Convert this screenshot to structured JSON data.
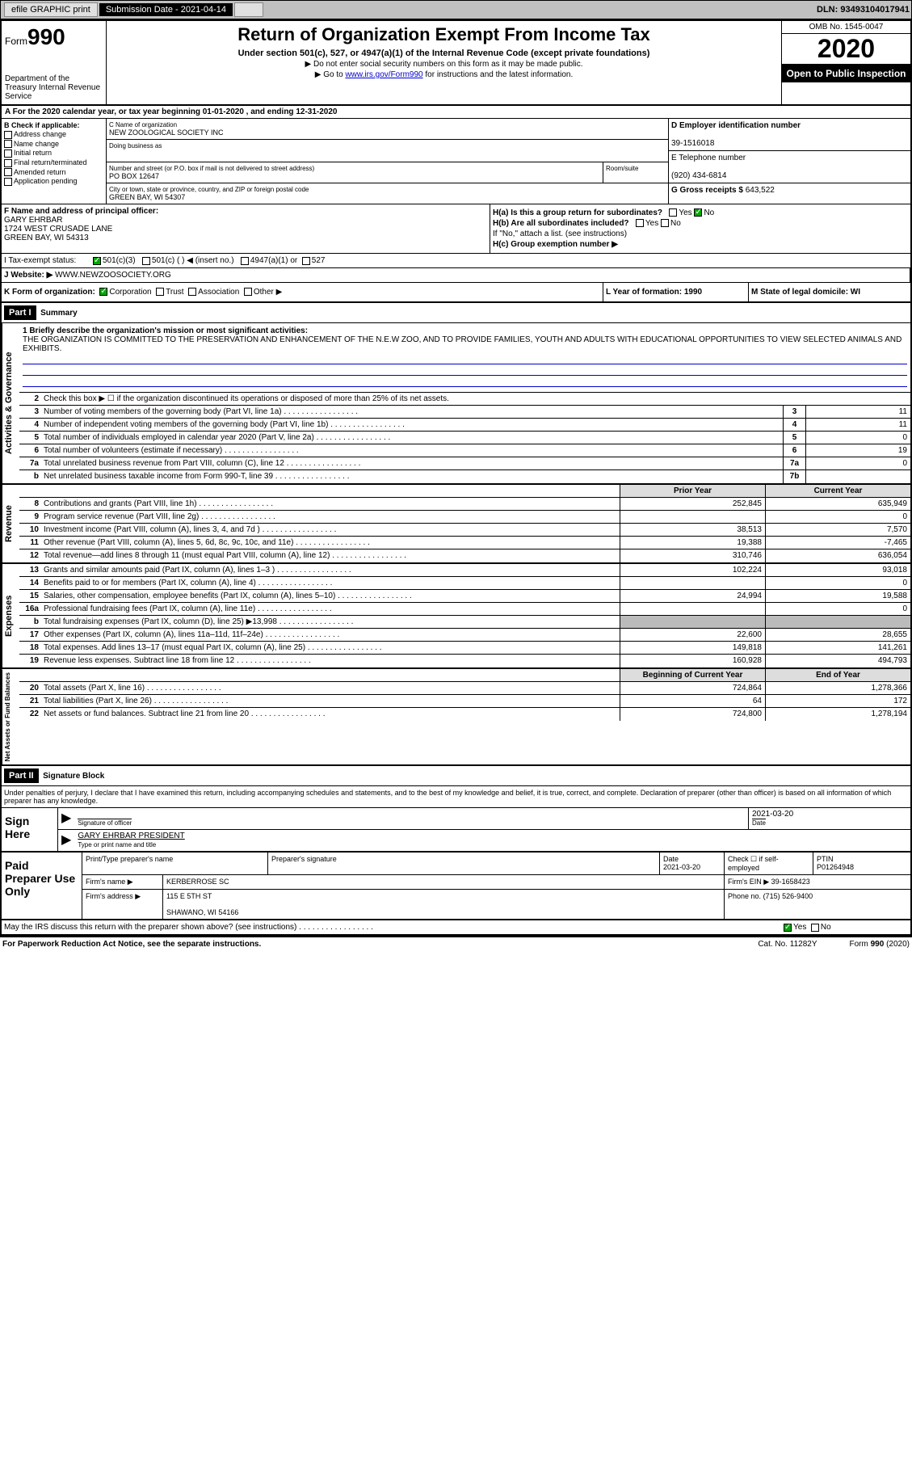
{
  "topbar": {
    "efile": "efile GRAPHIC print",
    "subdate_lbl": "Submission Date - 2021-04-14",
    "dln": "DLN: 93493104017941"
  },
  "header": {
    "form_prefix": "Form",
    "form_num": "990",
    "dept": "Department of the Treasury\nInternal Revenue Service",
    "title": "Return of Organization Exempt From Income Tax",
    "sub": "Under section 501(c), 527, or 4947(a)(1) of the Internal Revenue Code (except private foundations)",
    "note1": "▶ Do not enter social security numbers on this form as it may be made public.",
    "note2_pre": "▶ Go to ",
    "note2_link": "www.irs.gov/Form990",
    "note2_post": " for instructions and the latest information.",
    "omb": "OMB No. 1545-0047",
    "year": "2020",
    "opento": "Open to Public Inspection"
  },
  "row_a": "A For the 2020 calendar year, or tax year beginning 01-01-2020   , and ending 12-31-2020",
  "col_b": {
    "hdr": "B Check if applicable:",
    "items": [
      "Address change",
      "Name change",
      "Initial return",
      "Final return/terminated",
      "Amended return",
      "Application pending"
    ]
  },
  "name": {
    "c_lbl": "C Name of organization",
    "org": "NEW ZOOLOGICAL SOCIETY INC",
    "dba_lbl": "Doing business as",
    "addr_lbl": "Number and street (or P.O. box if mail is not delivered to street address)",
    "addr": "PO BOX 12647",
    "room_lbl": "Room/suite",
    "city_lbl": "City or town, state or province, country, and ZIP or foreign postal code",
    "city": "GREEN BAY, WI  54307"
  },
  "col_right": {
    "d_lbl": "D Employer identification number",
    "ein": "39-1516018",
    "e_lbl": "E Telephone number",
    "phone": "(920) 434-6814",
    "g_lbl": "G Gross receipts $ ",
    "g_val": "643,522"
  },
  "officer": {
    "f_lbl": "F  Name and address of principal officer:",
    "name": "GARY EHRBAR",
    "addr1": "1724 WEST CRUSADE LANE",
    "addr2": "GREEN BAY, WI  54313",
    "ha": "H(a)  Is this a group return for subordinates?",
    "hb": "H(b)  Are all subordinates included?",
    "hb_note": "If \"No,\" attach a list. (see instructions)",
    "hc": "H(c)  Group exemption number ▶"
  },
  "tax": {
    "i_lbl": "I   Tax-exempt status:",
    "opts": [
      "501(c)(3)",
      "501(c) (  ) ◀ (insert no.)",
      "4947(a)(1) or",
      "527"
    ]
  },
  "website": {
    "j_lbl": "J   Website: ▶",
    "url": " WWW.NEWZOOSOCIETY.ORG"
  },
  "k": {
    "lbl": "K Form of organization:",
    "opts": [
      "Corporation",
      "Trust",
      "Association",
      "Other ▶"
    ],
    "l": "L Year of formation: 1990",
    "m": "M State of legal domicile: WI"
  },
  "part1": {
    "hdr": "Part I",
    "title": "Summary",
    "q1": "1  Briefly describe the organization's mission or most significant activities:",
    "mission": "THE ORGANIZATION IS COMMITTED TO THE PRESERVATION AND ENHANCEMENT OF THE N.E.W ZOO, AND TO PROVIDE FAMILIES, YOUTH AND ADULTS WITH EDUCATIONAL OPPORTUNITIES TO VIEW SELECTED ANIMALS AND EXHIBITS.",
    "q2": "Check this box ▶ ☐  if the organization discontinued its operations or disposed of more than 25% of its net assets."
  },
  "gov_lines": [
    {
      "n": "3",
      "d": "Number of voting members of the governing body (Part VI, line 1a)",
      "b": "3",
      "v": "11"
    },
    {
      "n": "4",
      "d": "Number of independent voting members of the governing body (Part VI, line 1b)",
      "b": "4",
      "v": "11"
    },
    {
      "n": "5",
      "d": "Total number of individuals employed in calendar year 2020 (Part V, line 2a)",
      "b": "5",
      "v": "0"
    },
    {
      "n": "6",
      "d": "Total number of volunteers (estimate if necessary)",
      "b": "6",
      "v": "19"
    },
    {
      "n": "7a",
      "d": "Total unrelated business revenue from Part VIII, column (C), line 12",
      "b": "7a",
      "v": "0"
    },
    {
      "n": "b",
      "d": "Net unrelated business taxable income from Form 990-T, line 39",
      "b": "7b",
      "v": ""
    }
  ],
  "col_hdrs": {
    "prior": "Prior Year",
    "curr": "Current Year"
  },
  "rev_lines": [
    {
      "n": "8",
      "d": "Contributions and grants (Part VIII, line 1h)",
      "p": "252,845",
      "c": "635,949"
    },
    {
      "n": "9",
      "d": "Program service revenue (Part VIII, line 2g)",
      "p": "",
      "c": "0"
    },
    {
      "n": "10",
      "d": "Investment income (Part VIII, column (A), lines 3, 4, and 7d )",
      "p": "38,513",
      "c": "7,570"
    },
    {
      "n": "11",
      "d": "Other revenue (Part VIII, column (A), lines 5, 6d, 8c, 9c, 10c, and 11e)",
      "p": "19,388",
      "c": "-7,465"
    },
    {
      "n": "12",
      "d": "Total revenue—add lines 8 through 11 (must equal Part VIII, column (A), line 12)",
      "p": "310,746",
      "c": "636,054"
    }
  ],
  "exp_lines": [
    {
      "n": "13",
      "d": "Grants and similar amounts paid (Part IX, column (A), lines 1–3 )",
      "p": "102,224",
      "c": "93,018"
    },
    {
      "n": "14",
      "d": "Benefits paid to or for members (Part IX, column (A), line 4)",
      "p": "",
      "c": "0"
    },
    {
      "n": "15",
      "d": "Salaries, other compensation, employee benefits (Part IX, column (A), lines 5–10)",
      "p": "24,994",
      "c": "19,588"
    },
    {
      "n": "16a",
      "d": "Professional fundraising fees (Part IX, column (A), line 11e)",
      "p": "",
      "c": "0"
    },
    {
      "n": "b",
      "d": "Total fundraising expenses (Part IX, column (D), line 25) ▶13,998",
      "p": "shade",
      "c": "shade"
    },
    {
      "n": "17",
      "d": "Other expenses (Part IX, column (A), lines 11a–11d, 11f–24e)",
      "p": "22,600",
      "c": "28,655"
    },
    {
      "n": "18",
      "d": "Total expenses. Add lines 13–17 (must equal Part IX, column (A), line 25)",
      "p": "149,818",
      "c": "141,261"
    },
    {
      "n": "19",
      "d": "Revenue less expenses. Subtract line 18 from line 12",
      "p": "160,928",
      "c": "494,793"
    }
  ],
  "net_hdrs": {
    "begin": "Beginning of Current Year",
    "end": "End of Year"
  },
  "net_lines": [
    {
      "n": "20",
      "d": "Total assets (Part X, line 16)",
      "p": "724,864",
      "c": "1,278,366"
    },
    {
      "n": "21",
      "d": "Total liabilities (Part X, line 26)",
      "p": "64",
      "c": "172"
    },
    {
      "n": "22",
      "d": "Net assets or fund balances. Subtract line 21 from line 20",
      "p": "724,800",
      "c": "1,278,194"
    }
  ],
  "part2": {
    "hdr": "Part II",
    "title": "Signature Block"
  },
  "sig": {
    "decl": "Under penalties of perjury, I declare that I have examined this return, including accompanying schedules and statements, and to the best of my knowledge and belief, it is true, correct, and complete. Declaration of preparer (other than officer) is based on all information of which preparer has any knowledge.",
    "sign_here": "Sign Here",
    "sig_lbl": "Signature of officer",
    "date_lbl": "Date",
    "date": "2021-03-20",
    "name": "GARY EHRBAR  PRESIDENT",
    "name_lbl": "Type or print name and title"
  },
  "prep": {
    "lbl": "Paid Preparer Use Only",
    "print_lbl": "Print/Type preparer's name",
    "sig_lbl": "Preparer's signature",
    "date_lbl": "Date",
    "date": "2021-03-20",
    "check_lbl": "Check ☐ if self-employed",
    "ptin_lbl": "PTIN",
    "ptin": "P01264948",
    "firm_name_lbl": "Firm's name    ▶",
    "firm_name": "KERBERROSE SC",
    "firm_ein_lbl": "Firm's EIN ▶",
    "firm_ein": "39-1658423",
    "firm_addr_lbl": "Firm's address ▶",
    "firm_addr1": "115 E 5TH ST",
    "firm_addr2": "SHAWANO, WI  54166",
    "phone_lbl": "Phone no.",
    "phone": "(715) 526-9400"
  },
  "discuss": "May the IRS discuss this return with the preparer shown above? (see instructions)",
  "footer": {
    "l": "For Paperwork Reduction Act Notice, see the separate instructions.",
    "m": "Cat. No. 11282Y",
    "r": "Form 990 (2020)"
  }
}
